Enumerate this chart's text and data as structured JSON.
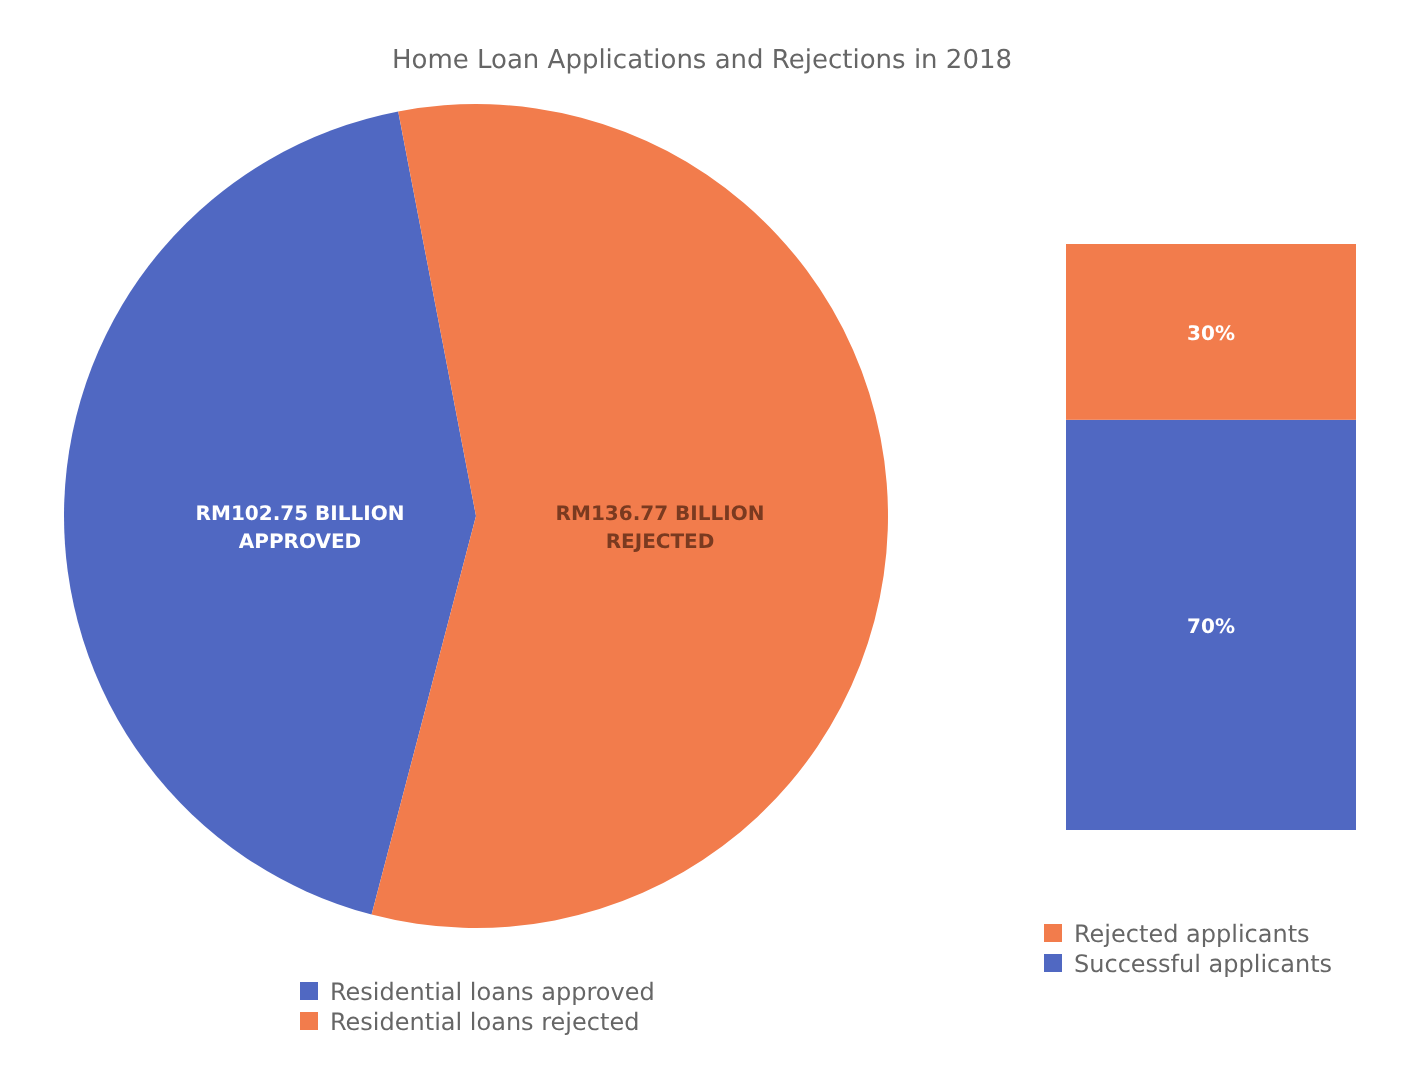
{
  "chart_data": [
    {
      "type": "pie",
      "title": "Home Loan Applications and Rejections in 2018",
      "categories": [
        "Residential loans approved",
        "Residential loans rejected"
      ],
      "values": [
        102.75,
        136.77
      ],
      "colors": [
        "#5068c2",
        "#f27c4c"
      ],
      "value_labels": [
        "RM102.75 BILLION APPROVED",
        "RM136.77 BILLION REJECTED"
      ],
      "legend": "bottom"
    },
    {
      "type": "bar",
      "stacked": true,
      "categories": [
        null
      ],
      "series": [
        {
          "name": "Successful applicants",
          "color": "#5068c2",
          "values": [
            70
          ],
          "value_labels": [
            "70%"
          ]
        },
        {
          "name": "Rejected applicants",
          "color": "#f27c4c",
          "values": [
            30
          ],
          "value_labels": [
            "30%"
          ]
        }
      ],
      "legend": "bottom"
    }
  ]
}
